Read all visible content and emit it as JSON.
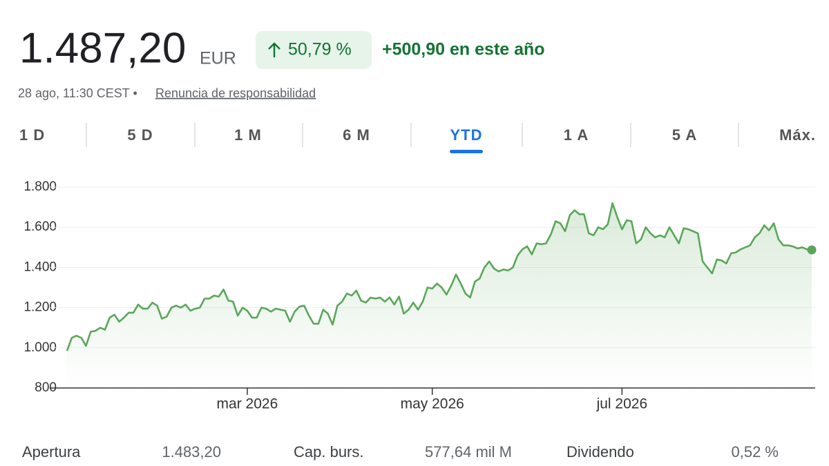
{
  "header": {
    "price": "1.487,20",
    "currency": "EUR",
    "change_pct": "50,79 %",
    "change_abs": "+500,90 en este año",
    "timestamp": "28 ago, 11:30 CEST •",
    "disclaimer": "Renuncia de responsabilidad"
  },
  "tabs": [
    "1 D",
    "5 D",
    "1 M",
    "6 M",
    "YTD",
    "1 A",
    "5 A",
    "Máx."
  ],
  "active_tab": 4,
  "chart_data": {
    "type": "line",
    "color": "#5aa65a",
    "grid": true,
    "values": [
      985,
      1050,
      1060,
      1050,
      1010,
      1080,
      1085,
      1100,
      1090,
      1150,
      1165,
      1130,
      1150,
      1175,
      1175,
      1215,
      1195,
      1195,
      1225,
      1210,
      1145,
      1155,
      1200,
      1210,
      1200,
      1215,
      1185,
      1195,
      1200,
      1245,
      1245,
      1260,
      1255,
      1290,
      1235,
      1230,
      1160,
      1200,
      1185,
      1150,
      1150,
      1200,
      1195,
      1180,
      1195,
      1190,
      1185,
      1130,
      1180,
      1205,
      1210,
      1160,
      1120,
      1120,
      1190,
      1170,
      1115,
      1210,
      1230,
      1270,
      1260,
      1285,
      1235,
      1225,
      1250,
      1245,
      1250,
      1230,
      1250,
      1215,
      1255,
      1170,
      1190,
      1225,
      1190,
      1230,
      1300,
      1295,
      1320,
      1300,
      1265,
      1310,
      1365,
      1320,
      1270,
      1250,
      1330,
      1345,
      1400,
      1430,
      1395,
      1380,
      1390,
      1385,
      1400,
      1460,
      1490,
      1505,
      1465,
      1520,
      1515,
      1520,
      1565,
      1630,
      1620,
      1580,
      1660,
      1685,
      1665,
      1665,
      1570,
      1560,
      1600,
      1590,
      1615,
      1720,
      1650,
      1590,
      1635,
      1630,
      1520,
      1540,
      1600,
      1570,
      1550,
      1560,
      1550,
      1600,
      1560,
      1520,
      1595,
      1590,
      1580,
      1570,
      1430,
      1400,
      1370,
      1440,
      1435,
      1420,
      1470,
      1475,
      1490,
      1500,
      1510,
      1550,
      1570,
      1610,
      1585,
      1620,
      1540,
      1510,
      1510,
      1505,
      1495,
      1500,
      1490,
      1487.2
    ],
    "xlim": [
      0,
      157
    ],
    "xticks": [
      {
        "value": 38,
        "label": "mar 2026"
      },
      {
        "value": 77,
        "label": "may 2026"
      },
      {
        "value": 117,
        "label": "jul 2026"
      }
    ],
    "ylim": [
      800,
      1800
    ],
    "yticks": [
      800,
      {
        "value": 1000,
        "label": "1.000"
      },
      {
        "value": 1200,
        "label": "1.200"
      },
      {
        "value": 1400,
        "label": "1.400"
      },
      {
        "value": 1600,
        "label": "1.600"
      },
      {
        "value": 1800,
        "label": "1.800"
      }
    ]
  },
  "stats": [
    {
      "label": "Apertura",
      "value": "1.483,20"
    },
    {
      "label": "Cap. burs.",
      "value": "577,64 mil M"
    },
    {
      "label": "Dividendo",
      "value": "0,52 %"
    }
  ]
}
